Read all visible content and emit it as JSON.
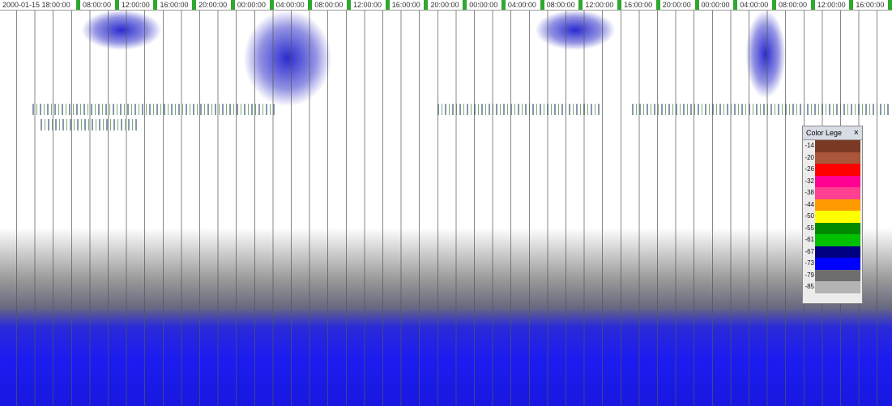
{
  "time_labels": [
    "2000-01-15 18:00:00",
    "08:00:00",
    "12:00:00",
    "16:00:00",
    "20:00:00",
    "00:00:00",
    "04:00:00",
    "08:00:00",
    "12:00:00",
    "16:00:00",
    "20:00:00",
    "00:00:00",
    "04:00:00",
    "08:00:00",
    "12:00:00",
    "16:00:00",
    "20:00:00",
    "00:00:00",
    "04:00:00",
    "08:00:00",
    "12:00:00",
    "16:00:00"
  ],
  "legend": {
    "title": "Color Lege",
    "close": "×",
    "entries": [
      {
        "label": "-14",
        "color": "#7b3a24"
      },
      {
        "label": "-20",
        "color": "#a9563a"
      },
      {
        "label": "-26",
        "color": "#ff0000"
      },
      {
        "label": "-32",
        "color": "#ff0090"
      },
      {
        "label": "-38",
        "color": "#ff3f8f"
      },
      {
        "label": "-44",
        "color": "#ff9a00"
      },
      {
        "label": "-50",
        "color": "#ffff00"
      },
      {
        "label": "-55",
        "color": "#008a00"
      },
      {
        "label": "-61",
        "color": "#00c000"
      },
      {
        "label": "-67",
        "color": "#000080"
      },
      {
        "label": "-73",
        "color": "#0000ff"
      },
      {
        "label": "-79",
        "color": "#6e6e6e"
      },
      {
        "label": "-85",
        "color": "#b4b4b4"
      }
    ]
  }
}
